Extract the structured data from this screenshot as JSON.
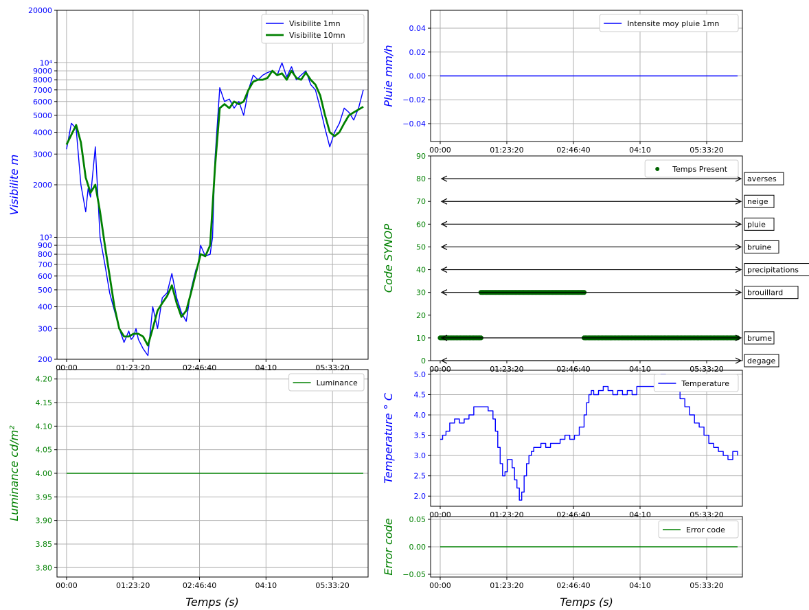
{
  "colors": {
    "blue": "#0000ff",
    "green": "#008000",
    "grid": "#b0b0b0",
    "line_green": "#1a8a1a"
  },
  "x_ticks": [
    "00:00",
    "01:23:20",
    "02:46:40",
    "04:10",
    "05:33:20"
  ],
  "xlabel": "Temps  (s)",
  "chart_data": [
    {
      "id": "visibility",
      "type": "line",
      "ylabel": "Visibilite  m",
      "yscale": "log",
      "ylim": [
        200,
        20000
      ],
      "xlim_hours": [
        -0.2,
        6.3
      ],
      "y_tick_labels": [
        {
          "v": 200,
          "t": "200"
        },
        {
          "v": 300,
          "t": "300"
        },
        {
          "v": 400,
          "t": "400"
        },
        {
          "v": 500,
          "t": "500"
        },
        {
          "v": 600,
          "t": "600"
        },
        {
          "v": 700,
          "t": "700"
        },
        {
          "v": 800,
          "t": "800"
        },
        {
          "v": 900,
          "t": "900"
        },
        {
          "v": 1000,
          "t": "10³"
        },
        {
          "v": 2000,
          "t": "2000"
        },
        {
          "v": 3000,
          "t": "3000"
        },
        {
          "v": 4000,
          "t": "4000"
        },
        {
          "v": 5000,
          "t": "5000"
        },
        {
          "v": 6000,
          "t": "6000"
        },
        {
          "v": 7000,
          "t": "7000"
        },
        {
          "v": 8000,
          "t": "8000"
        },
        {
          "v": 9000,
          "t": "9000"
        },
        {
          "v": 10000,
          "t": "10⁴"
        },
        {
          "v": 20000,
          "t": "20000"
        }
      ],
      "grid": true,
      "legend_position": "top-right",
      "series": [
        {
          "name": "Visibilite 1mn",
          "color": "#0000ff",
          "x": [
            0,
            0.1,
            0.2,
            0.3,
            0.4,
            0.45,
            0.5,
            0.6,
            0.7,
            0.8,
            0.9,
            1.0,
            1.1,
            1.2,
            1.3,
            1.35,
            1.4,
            1.45,
            1.5,
            1.6,
            1.7,
            1.8,
            1.9,
            2.0,
            2.1,
            2.2,
            2.3,
            2.4,
            2.5,
            2.6,
            2.7,
            2.75,
            2.8,
            2.9,
            3.0,
            3.05,
            3.1,
            3.2,
            3.3,
            3.4,
            3.5,
            3.6,
            3.7,
            3.8,
            3.9,
            4.0,
            4.1,
            4.2,
            4.3,
            4.4,
            4.5,
            4.6,
            4.7,
            4.8,
            4.9,
            5.0,
            5.1,
            5.2,
            5.3,
            5.4,
            5.5,
            5.6,
            5.7,
            5.8,
            5.9,
            6.0,
            6.1,
            6.2
          ],
          "y": [
            3200,
            4500,
            4200,
            2000,
            1400,
            1900,
            1700,
            3300,
            1000,
            700,
            480,
            380,
            300,
            250,
            290,
            260,
            270,
            300,
            260,
            230,
            210,
            400,
            300,
            450,
            480,
            620,
            450,
            370,
            330,
            500,
            650,
            700,
            900,
            780,
            800,
            1000,
            2800,
            7200,
            6000,
            6200,
            5500,
            6000,
            5000,
            7000,
            8500,
            8000,
            8500,
            8800,
            9000,
            8500,
            10000,
            8300,
            9500,
            8000,
            8500,
            9000,
            7500,
            7000,
            5500,
            4200,
            3300,
            4000,
            4500,
            5500,
            5200,
            4700,
            5500,
            7000
          ]
        },
        {
          "name": "Visibilite 10mn",
          "color": "#008000",
          "x": [
            0,
            0.2,
            0.3,
            0.4,
            0.5,
            0.6,
            0.7,
            0.8,
            0.9,
            1.0,
            1.1,
            1.2,
            1.3,
            1.4,
            1.5,
            1.6,
            1.7,
            1.8,
            1.9,
            2.0,
            2.1,
            2.2,
            2.3,
            2.4,
            2.5,
            2.6,
            2.7,
            2.8,
            2.9,
            3.0,
            3.1,
            3.2,
            3.3,
            3.4,
            3.5,
            3.6,
            3.7,
            3.8,
            3.9,
            4.0,
            4.1,
            4.2,
            4.3,
            4.4,
            4.5,
            4.6,
            4.7,
            4.8,
            4.9,
            5.0,
            5.1,
            5.2,
            5.3,
            5.4,
            5.5,
            5.6,
            5.7,
            5.8,
            5.9,
            6.0,
            6.1,
            6.2
          ],
          "y": [
            3400,
            4400,
            3500,
            2200,
            1800,
            2000,
            1400,
            900,
            600,
            400,
            300,
            270,
            270,
            280,
            280,
            270,
            240,
            300,
            380,
            420,
            460,
            530,
            420,
            350,
            380,
            480,
            620,
            800,
            780,
            900,
            2500,
            5500,
            5800,
            5500,
            6000,
            5800,
            6000,
            7000,
            7800,
            8000,
            8000,
            8200,
            9000,
            8500,
            8700,
            8000,
            9000,
            8200,
            8000,
            8800,
            8000,
            7500,
            6500,
            5000,
            4000,
            3800,
            4000,
            4500,
            5000,
            5200,
            5400,
            5600
          ]
        }
      ]
    },
    {
      "id": "rain",
      "type": "line",
      "ylabel": "Pluie  mm/h",
      "ylim": [
        -0.055,
        0.055
      ],
      "y_ticks": [
        -0.04,
        -0.02,
        0.0,
        0.02,
        0.04
      ],
      "y_tick_labels": [
        "−0.04",
        "−0.02",
        "0.00",
        "0.02",
        "0.04"
      ],
      "grid": true,
      "legend_position": "top-right",
      "series": [
        {
          "name": "Intensite moy pluie 1mn",
          "color": "#0000ff",
          "x": [
            0,
            6.2
          ],
          "y": [
            0,
            0
          ]
        }
      ]
    },
    {
      "id": "synop",
      "type": "scatter",
      "ylabel": "Code  SYNOP",
      "ylim": [
        0,
        90
      ],
      "y_ticks": [
        0,
        10,
        20,
        30,
        40,
        50,
        60,
        70,
        80,
        90
      ],
      "grid": false,
      "legend_position": "top-right",
      "series": [
        {
          "name": "Temps Present",
          "color": "#006400",
          "segments": [
            {
              "x0": 0.0,
              "x1": 0.85,
              "y": 10
            },
            {
              "x0": 0.85,
              "x1": 3.0,
              "y": 30
            },
            {
              "x0": 3.0,
              "x1": 6.2,
              "y": 10
            }
          ]
        }
      ],
      "annotations": [
        {
          "label": "averses",
          "y": 80
        },
        {
          "label": "neige",
          "y": 70
        },
        {
          "label": "pluie",
          "y": 60
        },
        {
          "label": "bruine",
          "y": 50
        },
        {
          "label": "precipitations",
          "y": 40
        },
        {
          "label": "brouillard",
          "y": 30
        },
        {
          "label": "brume",
          "y": 10
        },
        {
          "label": "degage",
          "y": 0
        }
      ]
    },
    {
      "id": "luminance",
      "type": "line",
      "ylabel": "Luminance  cd/m²",
      "ylim": [
        3.78,
        4.22
      ],
      "y_ticks": [
        3.8,
        3.85,
        3.9,
        3.95,
        4.0,
        4.05,
        4.1,
        4.15,
        4.2
      ],
      "y_tick_labels": [
        "3.80",
        "3.85",
        "3.90",
        "3.95",
        "4.00",
        "4.05",
        "4.10",
        "4.15",
        "4.20"
      ],
      "grid": true,
      "legend_position": "top-right",
      "series": [
        {
          "name": "Luminance",
          "color": "#008000",
          "x": [
            0,
            6.2
          ],
          "y": [
            4.0,
            4.0
          ]
        }
      ]
    },
    {
      "id": "temperature",
      "type": "line",
      "ylabel": "Temperature   ° C",
      "ylim": [
        1.75,
        5.1
      ],
      "y_ticks": [
        2.0,
        2.5,
        3.0,
        3.5,
        4.0,
        4.5,
        5.0
      ],
      "y_tick_labels": [
        "2.0",
        "2.5",
        "3.0",
        "3.5",
        "4.0",
        "4.5",
        "5.0"
      ],
      "grid": true,
      "legend_position": "top-right",
      "series": [
        {
          "name": "Temperature",
          "color": "#0000ff",
          "step": true,
          "x": [
            0,
            0.05,
            0.12,
            0.2,
            0.3,
            0.4,
            0.5,
            0.6,
            0.7,
            0.8,
            0.9,
            1.0,
            1.1,
            1.15,
            1.2,
            1.25,
            1.3,
            1.35,
            1.4,
            1.5,
            1.55,
            1.6,
            1.65,
            1.7,
            1.75,
            1.8,
            1.85,
            1.9,
            1.95,
            2.0,
            2.05,
            2.1,
            2.2,
            2.3,
            2.4,
            2.5,
            2.6,
            2.7,
            2.8,
            2.9,
            3.0,
            3.05,
            3.1,
            3.15,
            3.2,
            3.3,
            3.4,
            3.5,
            3.6,
            3.7,
            3.8,
            3.9,
            4.0,
            4.1,
            4.2,
            4.3,
            4.4,
            4.5,
            4.6,
            4.7,
            4.8,
            4.9,
            5.0,
            5.1,
            5.2,
            5.3,
            5.4,
            5.5,
            5.6,
            5.7,
            5.8,
            5.9,
            6.0,
            6.1,
            6.2
          ],
          "y": [
            3.4,
            3.5,
            3.6,
            3.8,
            3.9,
            3.8,
            3.9,
            4.0,
            4.2,
            4.2,
            4.2,
            4.1,
            3.9,
            3.6,
            3.2,
            2.8,
            2.5,
            2.6,
            2.9,
            2.7,
            2.4,
            2.2,
            1.9,
            2.1,
            2.5,
            2.8,
            3.0,
            3.1,
            3.2,
            3.2,
            3.2,
            3.3,
            3.2,
            3.3,
            3.3,
            3.4,
            3.5,
            3.4,
            3.5,
            3.7,
            4.0,
            4.3,
            4.5,
            4.6,
            4.5,
            4.6,
            4.7,
            4.6,
            4.5,
            4.6,
            4.5,
            4.6,
            4.5,
            4.7,
            4.7,
            4.7,
            4.7,
            4.9,
            5.0,
            4.9,
            4.8,
            4.6,
            4.4,
            4.2,
            4.0,
            3.8,
            3.7,
            3.5,
            3.3,
            3.2,
            3.1,
            3.0,
            2.9,
            3.1,
            3.0
          ]
        }
      ]
    },
    {
      "id": "error",
      "type": "line",
      "ylabel": "Error  code",
      "ylim": [
        -0.055,
        0.055
      ],
      "y_ticks": [
        -0.05,
        0.0,
        0.05
      ],
      "y_tick_labels": [
        "−0.05",
        "0.00",
        "0.05"
      ],
      "grid": true,
      "legend_position": "top-right",
      "series": [
        {
          "name": "Error code",
          "color": "#008000",
          "x": [
            0,
            6.2
          ],
          "y": [
            0,
            0
          ]
        }
      ]
    }
  ]
}
